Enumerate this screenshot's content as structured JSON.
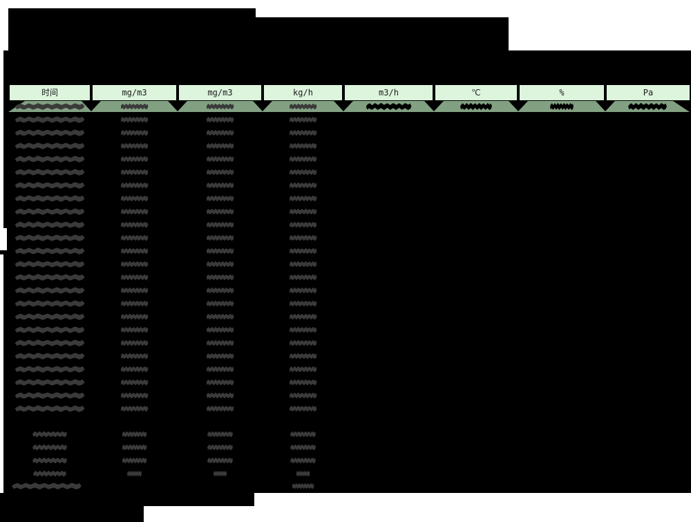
{
  "colors": {
    "page_bg": "#ffffff",
    "redaction": "#000000",
    "blob": "#3a3a3a",
    "first_row_blob_right": "#000000",
    "header_bg": "#ddf4dd",
    "header_text": "#1b1b1b",
    "band_bg": "#82a082"
  },
  "table": {
    "header_columns": [
      {
        "label": "时间"
      },
      {
        "label": "mg/m3"
      },
      {
        "label": "mg/m3"
      },
      {
        "label": "kg/h"
      },
      {
        "label": "m3/h"
      },
      {
        "label": "℃"
      },
      {
        "label": "%"
      },
      {
        "label": "Pa"
      }
    ],
    "body": {
      "hourly_row_count": 24,
      "summary_row_count": 4,
      "footer_row_count": 1,
      "all_values_redacted": true,
      "redacted_value_columns_visible": [
        0,
        1,
        2,
        3
      ],
      "first_row_highlighted": true
    }
  }
}
